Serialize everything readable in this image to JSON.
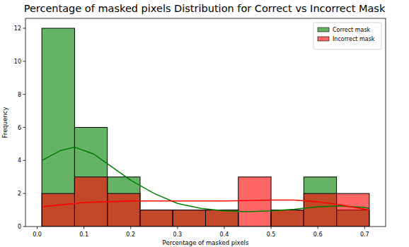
{
  "chart_data": {
    "type": "histogram",
    "title": "Percentage of masked pixels Distribution for Correct vs Incorrect Mask",
    "x_label": "Percentage of masked pixels",
    "y_label": "Frequency",
    "bins": [
      0.01,
      0.08,
      0.15,
      0.22,
      0.29,
      0.36,
      0.43,
      0.5,
      0.57,
      0.64,
      0.71
    ],
    "series": [
      {
        "name": "Correct mask",
        "color": "#008000",
        "values": [
          12,
          6,
          3,
          1,
          1,
          1,
          0,
          1,
          3,
          1
        ],
        "kde": {
          "x": [
            0.01,
            0.05,
            0.08,
            0.12,
            0.16,
            0.2,
            0.25,
            0.3,
            0.35,
            0.4,
            0.45,
            0.5,
            0.55,
            0.6,
            0.65,
            0.7,
            0.71
          ],
          "y": [
            4.0,
            4.6,
            4.8,
            4.4,
            3.6,
            2.8,
            2.0,
            1.4,
            1.1,
            0.95,
            0.9,
            0.95,
            1.05,
            1.2,
            1.25,
            1.15,
            1.1
          ]
        }
      },
      {
        "name": "Incorrect mask",
        "color": "#ff0000",
        "values": [
          2,
          3,
          2,
          1,
          1,
          1,
          3,
          1,
          2,
          2
        ],
        "kde": {
          "x": [
            0.01,
            0.1,
            0.2,
            0.3,
            0.4,
            0.5,
            0.55,
            0.6,
            0.65,
            0.7,
            0.71
          ],
          "y": [
            1.2,
            1.45,
            1.55,
            1.55,
            1.55,
            1.6,
            1.6,
            1.5,
            1.3,
            1.05,
            1.0
          ]
        }
      }
    ],
    "xlim": [
      -0.025,
      0.745
    ],
    "ylim": [
      0,
      12.6
    ],
    "xticks": [
      {
        "value": 0,
        "label": "0.0"
      },
      0.1,
      0.2,
      0.3,
      0.4,
      0.5,
      0.6,
      0.7
    ],
    "yticks": [
      0,
      2,
      4,
      6,
      8,
      10,
      12
    ],
    "legend": "upper right",
    "grid": false
  }
}
